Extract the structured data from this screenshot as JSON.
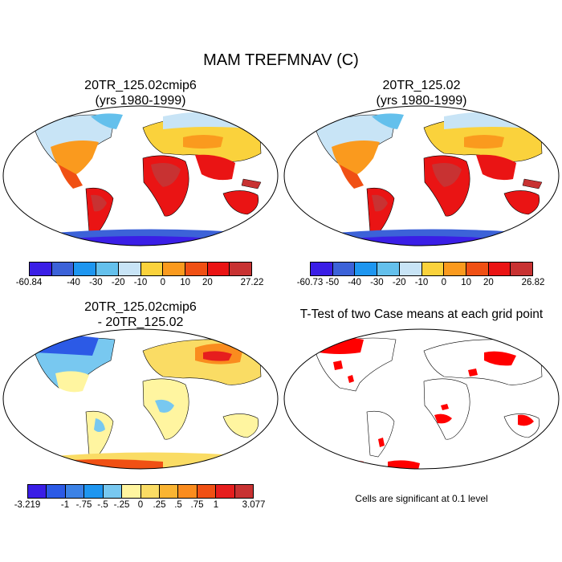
{
  "figure": {
    "title": "MAM TREFMNAV (C)",
    "panels": [
      {
        "title_line1": "20TR_125.02cmip6",
        "title_line2": "(yrs 1980-1999)"
      },
      {
        "title_line1": "20TR_125.02",
        "title_line2": "(yrs 1980-1999)"
      },
      {
        "title_line1": "20TR_125.02cmip6",
        "title_line2": "- 20TR_125.02"
      },
      {
        "title_line1": "T-Test of two Case means at each grid point",
        "caption": "Cells are significant at 0.1 level"
      }
    ],
    "colorbar1": {
      "colors": [
        "#3a1ee6",
        "#3c62d8",
        "#1e96f0",
        "#64c0ec",
        "#c8e4f6",
        "#fad23c",
        "#fa9a1e",
        "#f05014",
        "#ea1414",
        "#c83232"
      ],
      "labels": [
        "-60.84",
        "-40",
        "-30",
        "-20",
        "-10",
        "0",
        "10",
        "20",
        "27.22"
      ],
      "label_positions": [
        0,
        2,
        3,
        4,
        5,
        6,
        7,
        8,
        10
      ]
    },
    "colorbar2": {
      "colors": [
        "#3a1ee6",
        "#3c62d8",
        "#1e96f0",
        "#64c0ec",
        "#c8e4f6",
        "#fad23c",
        "#fa9a1e",
        "#f05014",
        "#ea1414",
        "#c83232"
      ],
      "labels": [
        "-60.73",
        "-50",
        "-40",
        "-30",
        "-20",
        "-10",
        "0",
        "10",
        "20",
        "26.82"
      ],
      "label_positions": [
        0,
        1,
        2,
        3,
        4,
        5,
        6,
        7,
        8,
        10
      ]
    },
    "colorbar3": {
      "colors": [
        "#3a1ee6",
        "#2c5ae6",
        "#3c82e6",
        "#1e96f0",
        "#78c8f0",
        "#fff5a0",
        "#fadc64",
        "#fab432",
        "#fa8c1e",
        "#f05014",
        "#e61e1e",
        "#c83232"
      ],
      "labels": [
        "-3.219",
        "-1",
        "-.75",
        "-.5",
        "-.25",
        "0",
        ".25",
        ".5",
        ".75",
        "1",
        "3.077"
      ],
      "label_positions": [
        0,
        2,
        3,
        4,
        5,
        6,
        7,
        8,
        9,
        10,
        12
      ]
    },
    "ttest": {
      "significant_color": "#ff0000"
    }
  }
}
